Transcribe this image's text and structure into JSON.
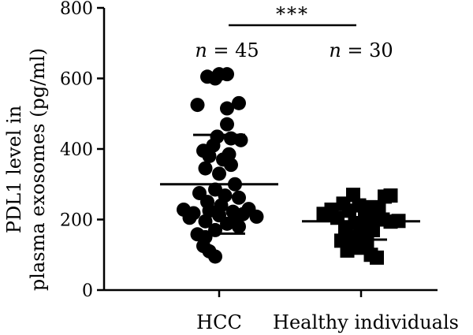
{
  "chart_data": {
    "type": "scatter",
    "categories": [
      "HCC",
      "Healthy individuals"
    ],
    "ylabel_line1": "PDL1 level in",
    "ylabel_line2": "plasma exosomes (pg/ml)",
    "ylim": [
      0,
      800
    ],
    "yticks": [
      0,
      200,
      400,
      600,
      800
    ],
    "significance": "***",
    "groups": [
      {
        "name": "HCC",
        "n_label": "n = 45",
        "n_symbol": "n",
        "n_value": "= 45",
        "marker": "circle",
        "mean": 300,
        "sd_upper": 440,
        "sd_lower": 160,
        "points": [
          {
            "y": 612,
            "dx": 0.0
          },
          {
            "y": 612,
            "dx": 0.2
          },
          {
            "y": 605,
            "dx": -0.3
          },
          {
            "y": 600,
            "dx": -0.1
          },
          {
            "y": 530,
            "dx": 0.5
          },
          {
            "y": 525,
            "dx": -0.55
          },
          {
            "y": 515,
            "dx": 0.2
          },
          {
            "y": 470,
            "dx": 0.2
          },
          {
            "y": 435,
            "dx": -0.05
          },
          {
            "y": 430,
            "dx": 0.3
          },
          {
            "y": 425,
            "dx": 0.55
          },
          {
            "y": 410,
            "dx": -0.15
          },
          {
            "y": 395,
            "dx": -0.4
          },
          {
            "y": 385,
            "dx": 0.25
          },
          {
            "y": 380,
            "dx": -0.25
          },
          {
            "y": 370,
            "dx": 0.1
          },
          {
            "y": 355,
            "dx": 0.3
          },
          {
            "y": 345,
            "dx": -0.35
          },
          {
            "y": 330,
            "dx": 0.0
          },
          {
            "y": 300,
            "dx": 0.4
          },
          {
            "y": 285,
            "dx": -0.1
          },
          {
            "y": 275,
            "dx": -0.5
          },
          {
            "y": 268,
            "dx": 0.15
          },
          {
            "y": 262,
            "dx": 0.5
          },
          {
            "y": 250,
            "dx": -0.3
          },
          {
            "y": 240,
            "dx": 0.05
          },
          {
            "y": 230,
            "dx": 0.75
          },
          {
            "y": 228,
            "dx": -0.9
          },
          {
            "y": 225,
            "dx": -0.25
          },
          {
            "y": 222,
            "dx": 0.35
          },
          {
            "y": 218,
            "dx": -0.65
          },
          {
            "y": 215,
            "dx": 0.6
          },
          {
            "y": 212,
            "dx": 0.0
          },
          {
            "y": 208,
            "dx": 0.95
          },
          {
            "y": 205,
            "dx": -0.75
          },
          {
            "y": 200,
            "dx": 0.4
          },
          {
            "y": 195,
            "dx": -0.35
          },
          {
            "y": 188,
            "dx": 0.2
          },
          {
            "y": 180,
            "dx": 0.5
          },
          {
            "y": 170,
            "dx": -0.1
          },
          {
            "y": 158,
            "dx": -0.55
          },
          {
            "y": 150,
            "dx": -0.35
          },
          {
            "y": 125,
            "dx": -0.4
          },
          {
            "y": 110,
            "dx": -0.25
          },
          {
            "y": 95,
            "dx": -0.1
          }
        ]
      },
      {
        "name": "Healthy individuals",
        "n_label": "n = 30",
        "n_symbol": "n",
        "n_value": "= 30",
        "marker": "square",
        "mean": 195,
        "sd_upper": 195,
        "sd_lower": 143,
        "points": [
          {
            "y": 270,
            "dx": -0.2
          },
          {
            "y": 268,
            "dx": 0.75
          },
          {
            "y": 265,
            "dx": 0.6
          },
          {
            "y": 245,
            "dx": -0.45
          },
          {
            "y": 240,
            "dx": -0.05
          },
          {
            "y": 235,
            "dx": 0.25
          },
          {
            "y": 232,
            "dx": 0.45
          },
          {
            "y": 228,
            "dx": -0.75
          },
          {
            "y": 225,
            "dx": -0.3
          },
          {
            "y": 220,
            "dx": 0.1
          },
          {
            "y": 216,
            "dx": -0.95
          },
          {
            "y": 212,
            "dx": 0.35
          },
          {
            "y": 205,
            "dx": -0.6
          },
          {
            "y": 200,
            "dx": 0.55
          },
          {
            "y": 196,
            "dx": 0.95
          },
          {
            "y": 194,
            "dx": 0.75
          },
          {
            "y": 190,
            "dx": -0.15
          },
          {
            "y": 185,
            "dx": 0.2
          },
          {
            "y": 175,
            "dx": -0.4
          },
          {
            "y": 170,
            "dx": 0.3
          },
          {
            "y": 160,
            "dx": 0.0
          },
          {
            "y": 150,
            "dx": -0.2
          },
          {
            "y": 145,
            "dx": 0.1
          },
          {
            "y": 140,
            "dx": -0.5
          },
          {
            "y": 135,
            "dx": 0.15
          },
          {
            "y": 130,
            "dx": -0.3
          },
          {
            "y": 120,
            "dx": -0.05
          },
          {
            "y": 112,
            "dx": -0.35
          },
          {
            "y": 100,
            "dx": 0.25
          },
          {
            "y": 92,
            "dx": 0.4
          }
        ]
      }
    ]
  }
}
